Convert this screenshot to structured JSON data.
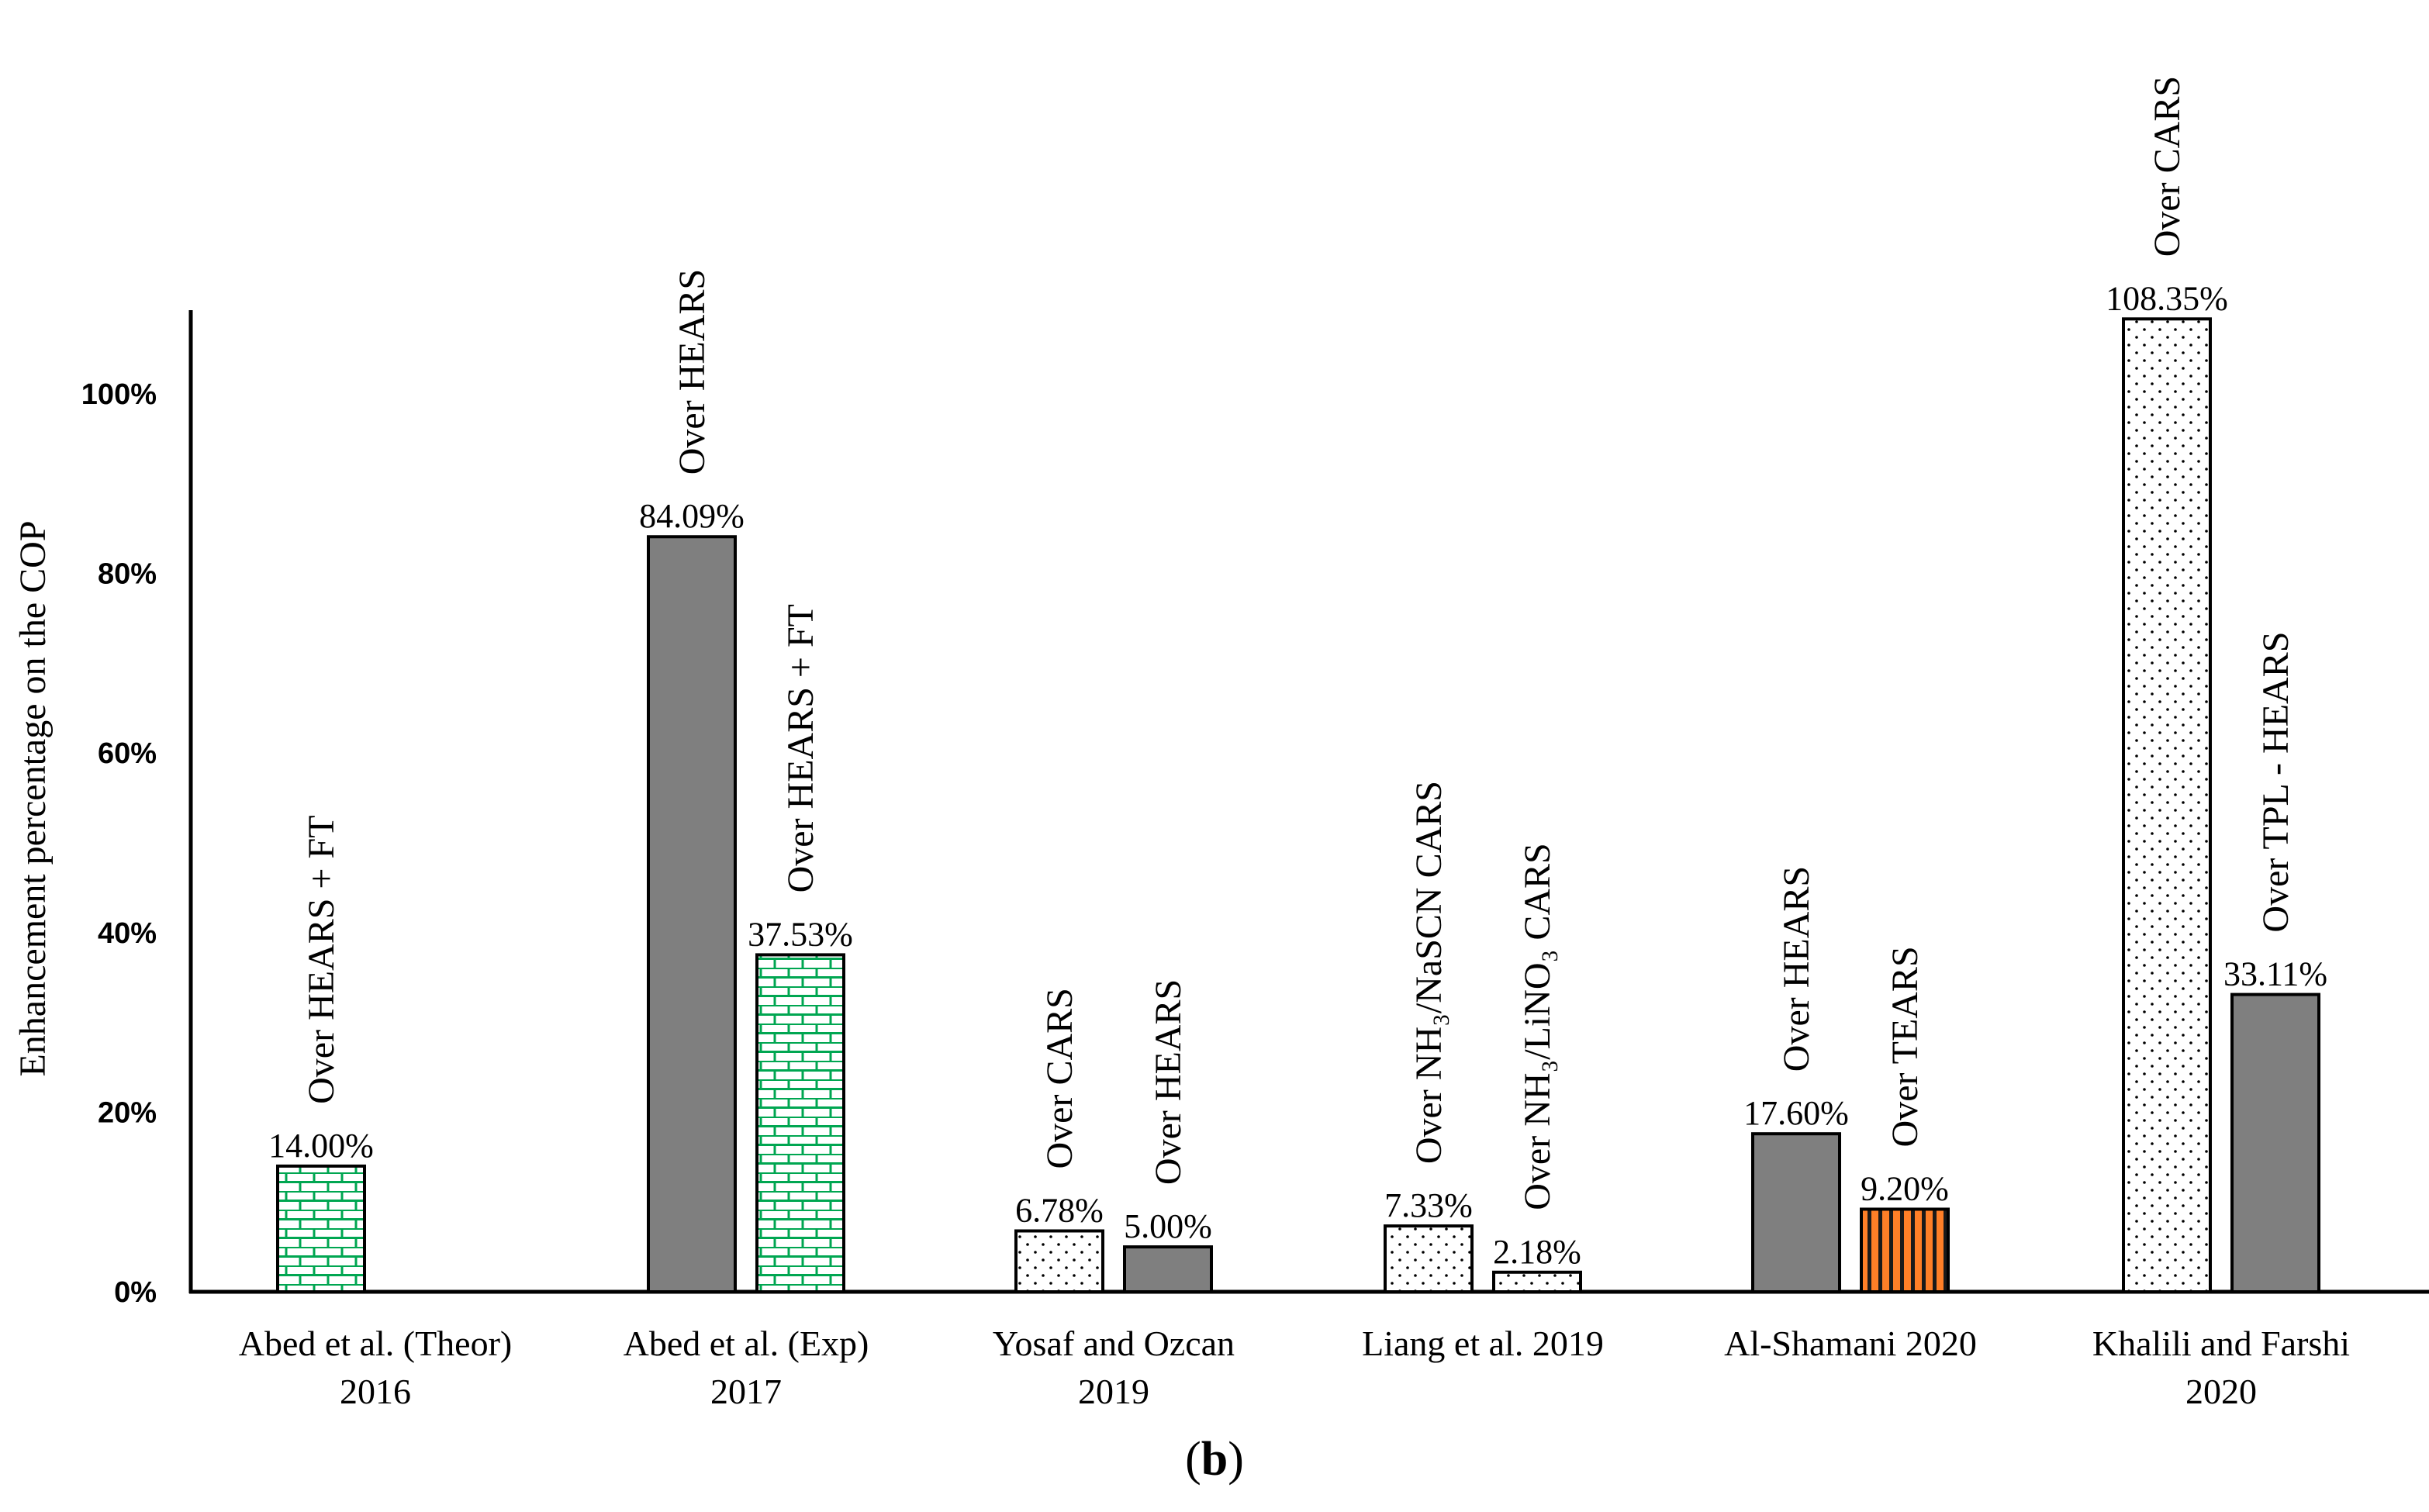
{
  "chart_data": {
    "type": "bar",
    "ylabel": "Enhancement percentage on the COP",
    "xlabel": "",
    "title": "",
    "caption_paren_open": "(",
    "caption_letter": "b",
    "caption_paren_close": ")",
    "ylim": [
      0,
      110
    ],
    "yticks": [
      0,
      20,
      40,
      60,
      80,
      100
    ],
    "ytick_labels": [
      "0%",
      "20%",
      "40%",
      "60%",
      "80%",
      "100%"
    ],
    "grid": false,
    "legend": "none",
    "groups": [
      {
        "label_lines": [
          "Abed et al. (Theor)",
          "2016"
        ],
        "bars": [
          {
            "value": 14.0,
            "label": "14.00%",
            "annotation": "Over HEARS + FT",
            "pattern": "brick-green"
          }
        ]
      },
      {
        "label_lines": [
          "Abed et al. (Exp)",
          "2017"
        ],
        "bars": [
          {
            "value": 84.09,
            "label": "84.09%",
            "annotation": "Over HEARS",
            "pattern": "solid-gray"
          },
          {
            "value": 37.53,
            "label": "37.53%",
            "annotation": "Over HEARS + FT",
            "pattern": "brick-green"
          }
        ]
      },
      {
        "label_lines": [
          "Yosaf and Ozcan",
          "2019"
        ],
        "bars": [
          {
            "value": 6.78,
            "label": "6.78%",
            "annotation": "Over CARS",
            "pattern": "dots"
          },
          {
            "value": 5.0,
            "label": "5.00%",
            "annotation": "Over HEARS",
            "pattern": "solid-gray"
          }
        ]
      },
      {
        "label_lines": [
          "Liang et al. 2019"
        ],
        "bars": [
          {
            "value": 7.33,
            "label": "7.33%",
            "annotation": "Over NH₃/NaSCN CARS",
            "pattern": "dots"
          },
          {
            "value": 2.18,
            "label": "2.18%",
            "annotation": "Over NH₃/LiNO₃ CARS",
            "pattern": "dots"
          }
        ]
      },
      {
        "label_lines": [
          "Al-Shamani 2020"
        ],
        "bars": [
          {
            "value": 17.6,
            "label": "17.60%",
            "annotation": "Over HEARS",
            "pattern": "solid-gray"
          },
          {
            "value": 9.2,
            "label": "9.20%",
            "annotation": "Over TEARS",
            "pattern": "stripes-orange"
          }
        ]
      },
      {
        "label_lines": [
          "Khalili and Farshi",
          "2020"
        ],
        "bars": [
          {
            "value": 108.35,
            "label": "108.35%",
            "annotation": "Over CARS",
            "pattern": "dots"
          },
          {
            "value": 33.11,
            "label": "33.11%",
            "annotation": "Over TPL - HEARS",
            "pattern": "solid-gray"
          }
        ]
      }
    ],
    "colors": {
      "solid_gray": "#7f7f7f",
      "brick_green": "#00a651",
      "stripes_orange": "#ff7f27",
      "outline": "#000000"
    }
  }
}
